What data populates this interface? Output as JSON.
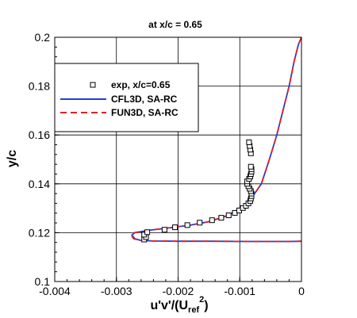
{
  "chart_data": {
    "type": "line",
    "title": "at x/c = 0.65",
    "xlabel": "u'v'/(U",
    "xlabel_sub": "ref",
    "xlabel_sup": "2",
    "xlabel_end": ")",
    "ylabel": "y/c",
    "xlim": [
      -0.004,
      0
    ],
    "ylim": [
      0.1,
      0.2
    ],
    "x_ticks": [
      -0.004,
      -0.003,
      -0.002,
      -0.001,
      0
    ],
    "x_tick_labels": [
      "-0.004",
      "-0.003",
      "-0.002",
      "-0.001",
      "0"
    ],
    "y_ticks": [
      0.1,
      0.12,
      0.14,
      0.16,
      0.18,
      0.2
    ],
    "y_tick_labels": [
      "0.1",
      "0.12",
      "0.14",
      "0.16",
      "0.18",
      "0.2"
    ],
    "grid": true,
    "legend_position": "top-left",
    "series": [
      {
        "name": "exp, x/c=0.65",
        "kind": "markers",
        "color": "#000000",
        "x": [
          -0.00255,
          -0.00252,
          -0.00255,
          -0.0025,
          -0.00222,
          -0.00205,
          -0.00185,
          -0.00165,
          -0.00145,
          -0.0013,
          -0.00118,
          -0.00108,
          -0.00101,
          -0.00095,
          -0.0009,
          -0.00086,
          -0.00083,
          -0.00082,
          -0.00081,
          -0.00081,
          -0.00082,
          -0.00084,
          -0.00086,
          -0.00088,
          -0.00088,
          -0.00085,
          -0.00083,
          -0.00082,
          -0.00081,
          -0.00081,
          -0.00082,
          -0.00082,
          -0.00083,
          -0.00084,
          -0.00085
        ],
        "y": [
          0.1172,
          0.1182,
          0.1192,
          0.1202,
          0.1212,
          0.1222,
          0.1231,
          0.1241,
          0.1251,
          0.1261,
          0.1271,
          0.1281,
          0.1291,
          0.1301,
          0.131,
          0.132,
          0.133,
          0.134,
          0.135,
          0.136,
          0.137,
          0.138,
          0.139,
          0.14,
          0.141,
          0.142,
          0.143,
          0.144,
          0.145,
          0.146,
          0.147,
          0.1525,
          0.154,
          0.1555,
          0.157
        ]
      },
      {
        "name": "CFL3D, SA-RC",
        "kind": "line",
        "dash": "solid",
        "color": "#1f3fdc",
        "x": [
          0,
          -0.0002,
          -0.0008,
          -0.0015,
          -0.002,
          -0.0024,
          -0.0026,
          -0.0027,
          -0.00275,
          -0.0027,
          -0.0025,
          -0.0022,
          -0.0018,
          -0.0015,
          -0.0012,
          -0.00105,
          -0.00095,
          -0.00088,
          -0.00082,
          -0.0008,
          -0.00076,
          -0.00065,
          -0.00052,
          -0.0004,
          -0.0003,
          -0.0002,
          -0.00012,
          -5e-05,
          0
        ],
        "y": [
          0.1165,
          0.1164,
          0.1164,
          0.1165,
          0.1165,
          0.1166,
          0.1168,
          0.1175,
          0.119,
          0.12,
          0.1209,
          0.1218,
          0.1231,
          0.1245,
          0.127,
          0.129,
          0.1305,
          0.132,
          0.1335,
          0.1345,
          0.136,
          0.14,
          0.15,
          0.16,
          0.17,
          0.18,
          0.19,
          0.197,
          0.2
        ]
      },
      {
        "name": "FUN3D, SA-RC",
        "kind": "line",
        "dash": "dashed",
        "color": "#e0202a",
        "x": [
          0,
          -0.0002,
          -0.0008,
          -0.0015,
          -0.002,
          -0.0024,
          -0.0026,
          -0.00272,
          -0.00276,
          -0.00271,
          -0.0025,
          -0.0022,
          -0.0018,
          -0.0015,
          -0.0012,
          -0.00105,
          -0.00095,
          -0.00088,
          -0.00082,
          -0.0008,
          -0.00076,
          -0.00065,
          -0.00052,
          -0.0004,
          -0.0003,
          -0.0002,
          -0.00012,
          -5e-05,
          0
        ],
        "y": [
          0.1165,
          0.1164,
          0.1164,
          0.1165,
          0.1165,
          0.1166,
          0.1168,
          0.1175,
          0.119,
          0.12,
          0.1209,
          0.1218,
          0.1231,
          0.1245,
          0.127,
          0.129,
          0.1305,
          0.132,
          0.1335,
          0.1345,
          0.136,
          0.14,
          0.15,
          0.16,
          0.17,
          0.18,
          0.19,
          0.197,
          0.2
        ]
      }
    ]
  }
}
